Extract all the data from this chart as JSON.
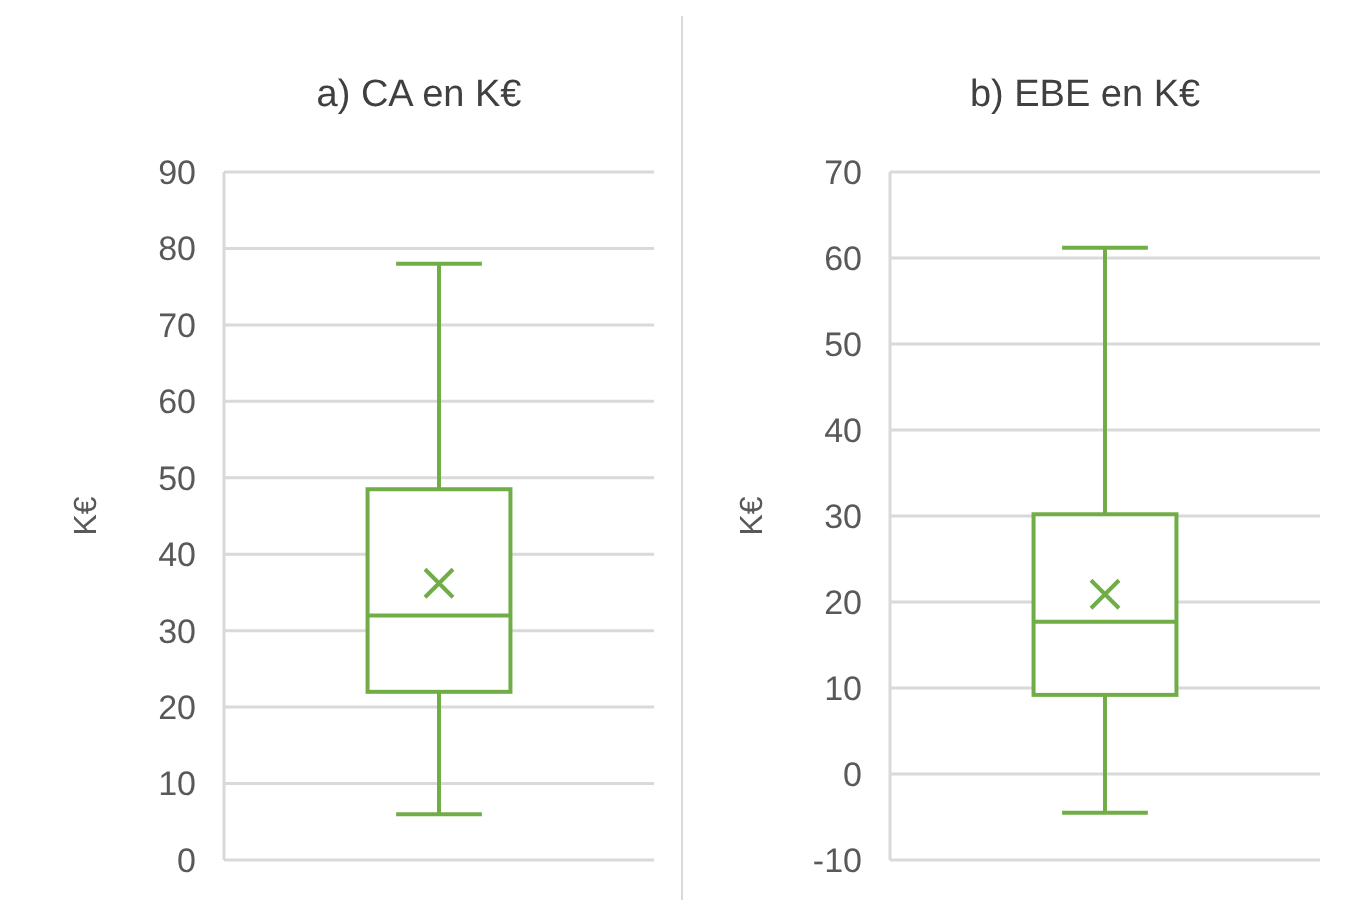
{
  "chart_data": [
    {
      "type": "box",
      "title": "a) CA en K€",
      "ylabel": "K€",
      "categories": [
        null
      ],
      "color": "#70ad47",
      "marker": "cross",
      "grid": "y",
      "ylim": [
        0,
        90
      ],
      "yticks": [
        0,
        10,
        20,
        30,
        40,
        50,
        60,
        70,
        80,
        90
      ],
      "boxes": [
        {
          "low": 6,
          "q1": 22,
          "median": 32,
          "q3": 48.5,
          "high": 78,
          "mean": 36.2
        }
      ]
    },
    {
      "type": "box",
      "title": "b) EBE en K€",
      "ylabel": "K€",
      "categories": [
        null
      ],
      "color": "#70ad47",
      "marker": "cross",
      "grid": "y",
      "ylim": [
        -10,
        70
      ],
      "yticks": [
        -10,
        0,
        10,
        20,
        30,
        40,
        50,
        60,
        70
      ],
      "boxes": [
        {
          "low": -4.5,
          "q1": 9.2,
          "median": 17.7,
          "q3": 30.2,
          "high": 61.2,
          "mean": 20.9
        }
      ]
    }
  ]
}
